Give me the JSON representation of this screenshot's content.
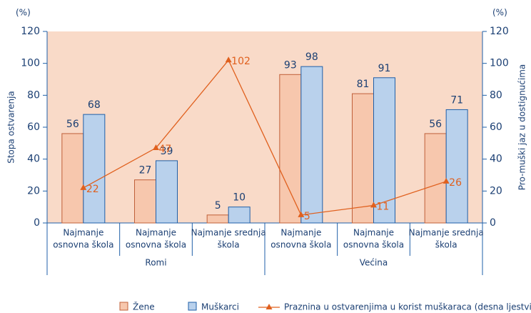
{
  "chart_data": {
    "type": "bar",
    "ylabel": "Stopa ostvarenja",
    "y2label": "Pro-muški jaz u dostignućima",
    "yunit": "(%)",
    "y2unit": "(%)",
    "categories": [
      [
        "Najmanje",
        "osnovna škola"
      ],
      [
        "Najmanje",
        "osnovna škola"
      ],
      [
        "Najmanje srednja",
        "škola"
      ],
      [
        "Najmanje",
        "osnovna škola"
      ],
      [
        "Najmanje",
        "osnovna škola"
      ],
      [
        "Najmanje srednja",
        "škola"
      ]
    ],
    "groups": [
      "Romi",
      "Većina"
    ],
    "series": [
      {
        "name": "Žene",
        "type": "bar",
        "color": "#f7c7ad",
        "values": [
          56,
          27,
          5,
          93,
          81,
          56
        ]
      },
      {
        "name": "Muškarci",
        "type": "bar",
        "color": "#b9d1ec",
        "values": [
          68,
          39,
          10,
          98,
          91,
          71
        ]
      },
      {
        "name": "Praznina u ostvarenjima u korist muškaraca (desna ljestvica)",
        "type": "line",
        "axis": "y2",
        "color": "#e0601e",
        "values": [
          22,
          47,
          102,
          5,
          11,
          26
        ]
      }
    ],
    "ylim": [
      0,
      120
    ],
    "yticks": [
      0,
      20,
      40,
      60,
      80,
      100,
      120
    ],
    "y2lim": [
      0,
      120
    ],
    "y2ticks": [
      0,
      20,
      40,
      60,
      80,
      100,
      120
    ],
    "background": "#f9dac8"
  }
}
